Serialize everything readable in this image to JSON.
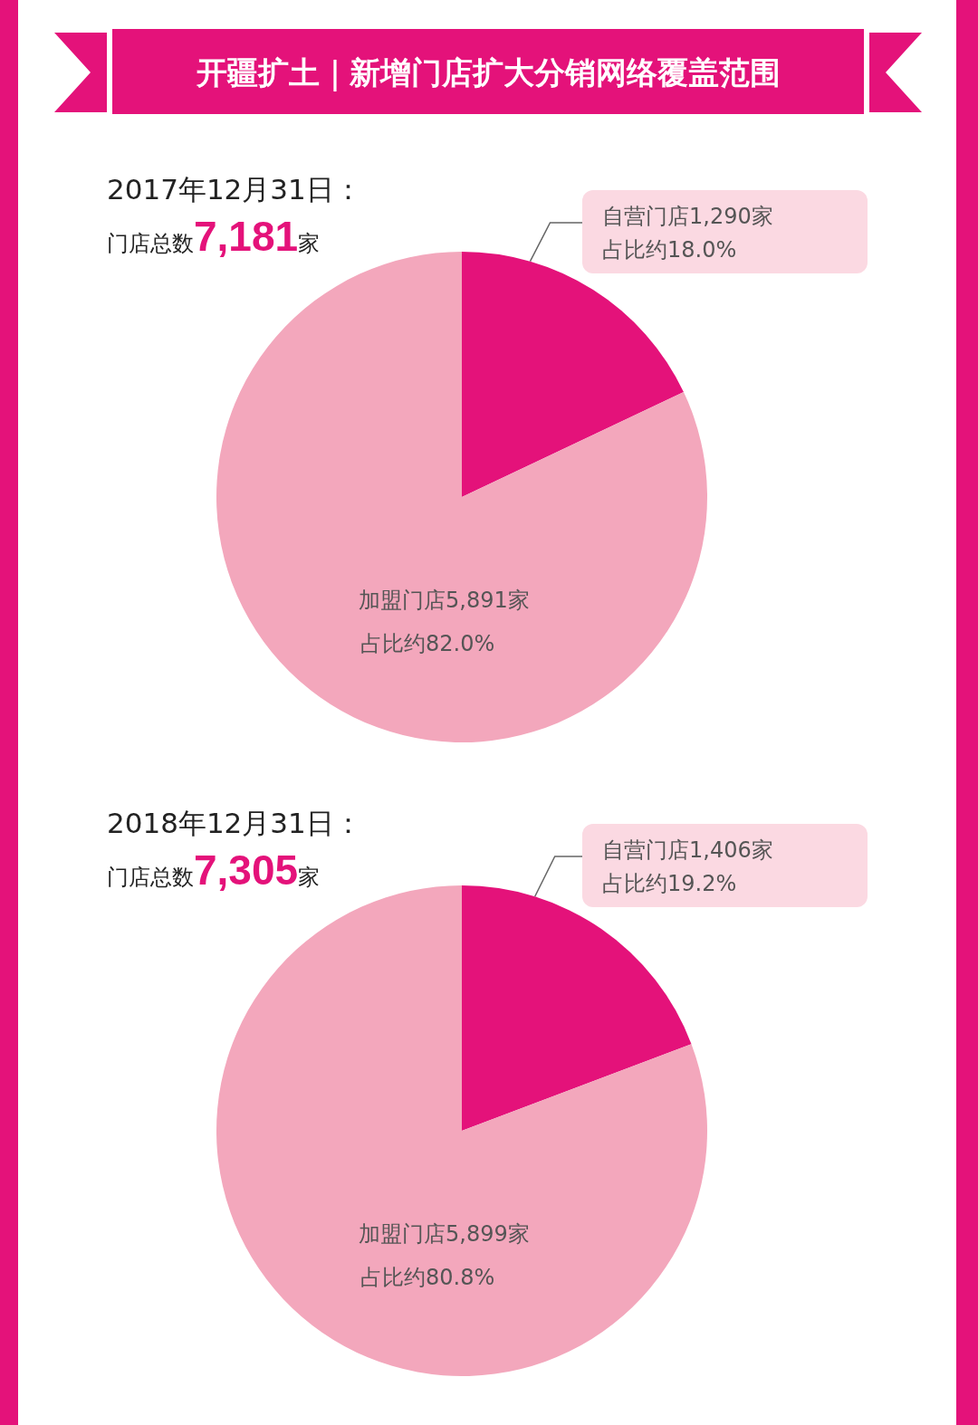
{
  "chart_data": [
    {
      "type": "pie",
      "title": "开疆扩土｜新增门店扩大分销网络覆盖范围",
      "subtitle": "2017年12月31日：",
      "annotations": [
        "门店总数7,181家"
      ],
      "categories": [
        "自营门店1,290家",
        "加盟门店5,891家"
      ],
      "values": [
        1290,
        5891
      ],
      "value_labels": [
        "占比约18.0%",
        "占比约82.0%"
      ],
      "colors": [
        "#e4127a",
        "#f3a7bc"
      ]
    },
    {
      "type": "pie",
      "subtitle": "2018年12月31日：",
      "annotations": [
        "门店总数7,305家"
      ],
      "categories": [
        "自营门店1,406家",
        "加盟门店5,899家"
      ],
      "values": [
        1406,
        5899
      ],
      "value_labels": [
        "占比约19.2%",
        "占比约80.8%"
      ],
      "colors": [
        "#e4127a",
        "#f3a7bc"
      ]
    }
  ]
}
